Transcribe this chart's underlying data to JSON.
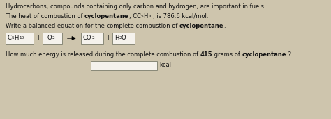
{
  "bg_color": "#cec5ad",
  "text_color": "#111111",
  "fs_main": 6.0,
  "fs_sub": 4.2,
  "line1": "Hydrocarbons, compounds containing only carbon and hydrogen, are important in fuels.",
  "line2_p1": "The heat of combustion of ",
  "line2_bold": "cyclopentane",
  "line2_p2": ", C",
  "line2_s1": "5",
  "line2_p3": "H",
  "line2_s2": "10",
  "line2_p4": ", is 786.6 kcal/mol.",
  "line3_p1": "Write a balanced equation for the complete combustion of ",
  "line3_bold": "cyclopentane",
  "line3_p2": ".",
  "eq_box1": "C",
  "eq_b1s1": "5",
  "eq_b1p": "H",
  "eq_b1s2": "10",
  "eq_box2": "O",
  "eq_b2s": "2",
  "eq_box3": "CO",
  "eq_b3s": "2",
  "eq_box4": "H",
  "eq_b4s": "2",
  "eq_b4p": "O",
  "line4_p1": "How much energy is released during the complete combustion of ",
  "line4_bold1": "415",
  "line4_p2": " grams of ",
  "line4_bold2": "cyclopentane",
  "line4_p3": " ?",
  "kcal_label": "kcal",
  "box_fc": "#f5f2ec",
  "box_ec": "#888877"
}
